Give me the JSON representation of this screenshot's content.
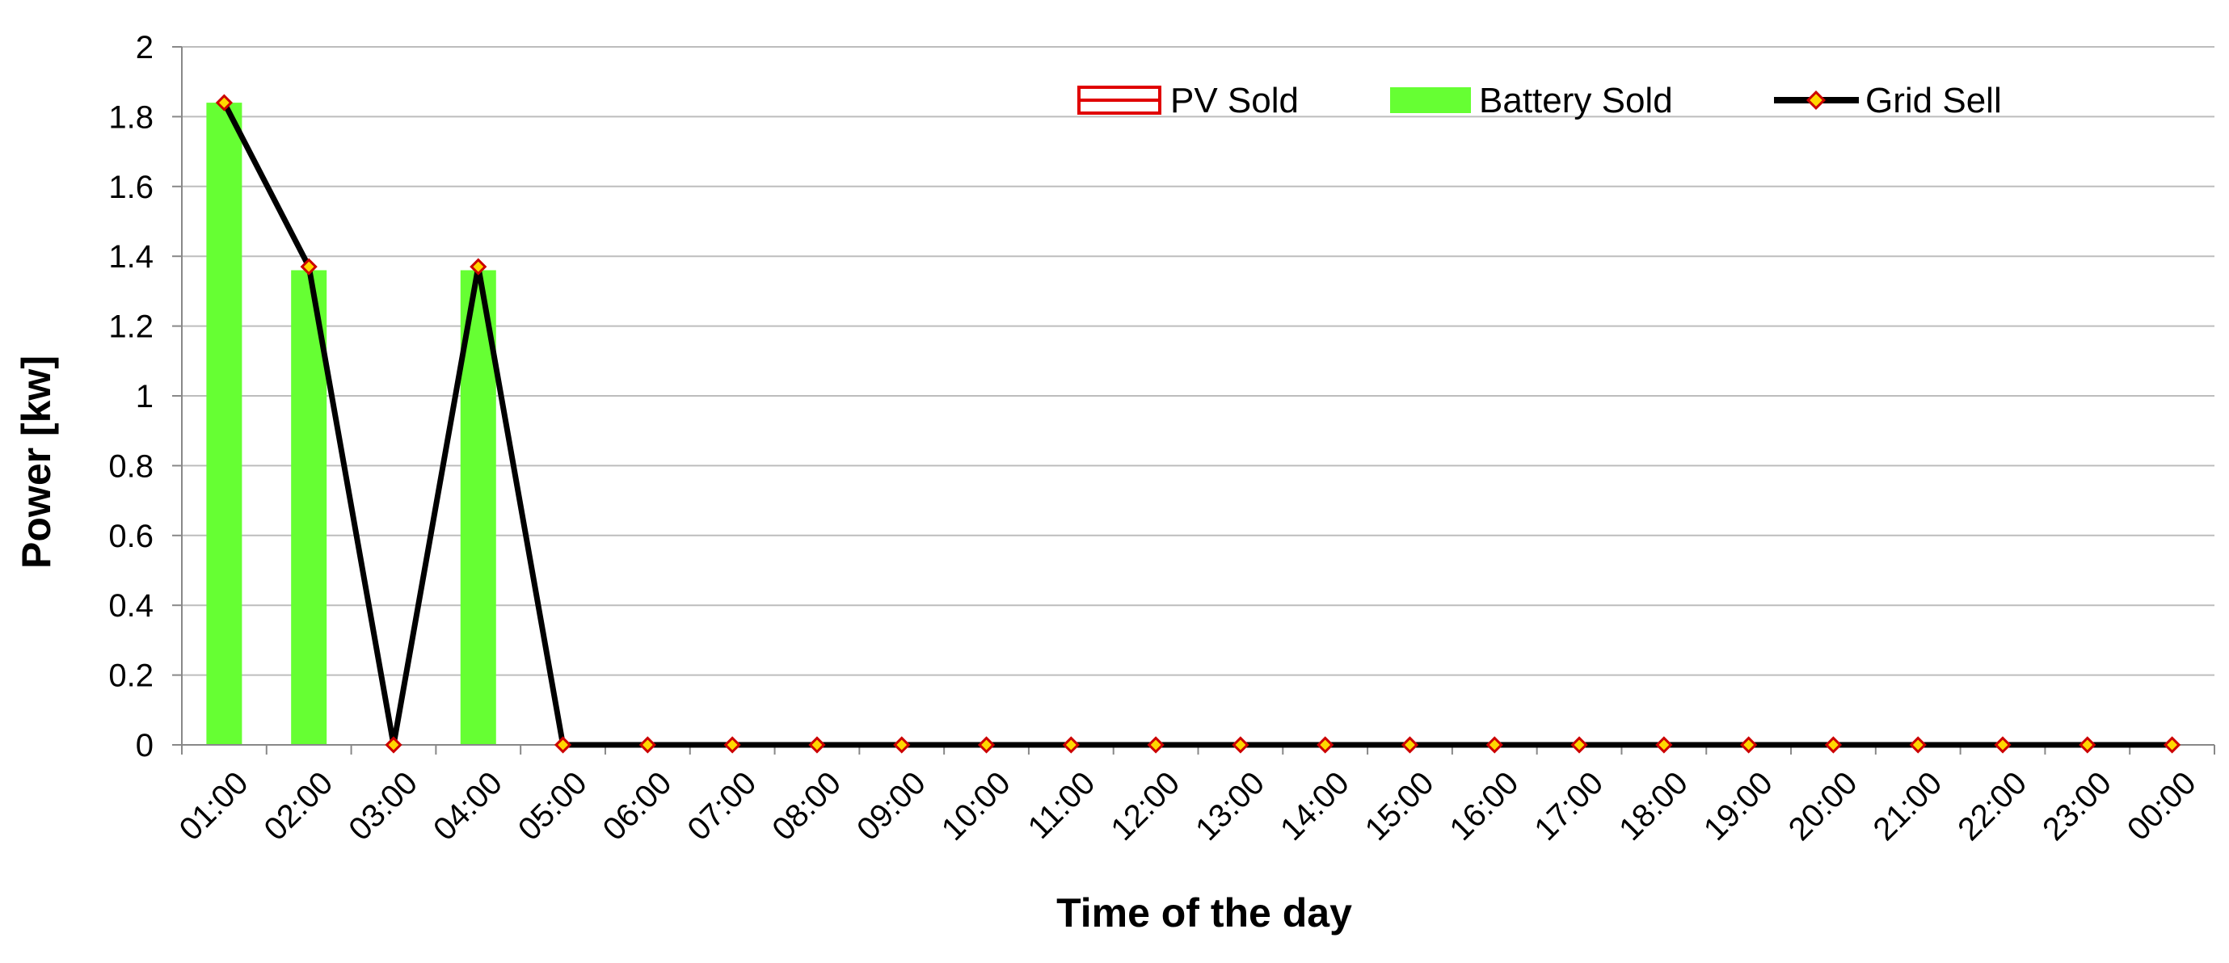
{
  "chart_data": {
    "type": "bar",
    "categories": [
      "01:00",
      "02:00",
      "03:00",
      "04:00",
      "05:00",
      "06:00",
      "07:00",
      "08:00",
      "09:00",
      "10:00",
      "11:00",
      "12:00",
      "13:00",
      "14:00",
      "15:00",
      "16:00",
      "17:00",
      "18:00",
      "19:00",
      "20:00",
      "21:00",
      "22:00",
      "23:00",
      "00:00"
    ],
    "series": [
      {
        "name": "PV Sold",
        "kind": "bar",
        "color": "#e00000",
        "values": [
          0,
          0,
          0,
          0,
          0,
          0,
          0,
          0,
          0,
          0,
          0,
          0,
          0,
          0,
          0,
          0,
          0,
          0,
          0,
          0,
          0,
          0,
          0,
          0
        ]
      },
      {
        "name": "Battery Sold",
        "kind": "bar",
        "color": "#66ff33",
        "values": [
          1.84,
          1.36,
          0,
          1.36,
          0,
          0,
          0,
          0,
          0,
          0,
          0,
          0,
          0,
          0,
          0,
          0,
          0,
          0,
          0,
          0,
          0,
          0,
          0,
          0
        ]
      },
      {
        "name": "Grid Sell",
        "kind": "line",
        "color": "#000000",
        "marker_color": "#ffd700",
        "marker_edge": "#cc0000",
        "values": [
          1.84,
          1.37,
          0,
          1.37,
          0,
          0,
          0,
          0,
          0,
          0,
          0,
          0,
          0,
          0,
          0,
          0,
          0,
          0,
          0,
          0,
          0,
          0,
          0,
          0
        ]
      }
    ],
    "xlabel": "Time of the day",
    "ylabel": "Power [kw]",
    "ylim": [
      0,
      2
    ],
    "yticks": [
      "0",
      "0.2",
      "0.4",
      "0.6",
      "0.8",
      "1",
      "1.2",
      "1.4",
      "1.6",
      "1.8",
      "2"
    ],
    "grid": true,
    "legend_position": "top-right"
  }
}
